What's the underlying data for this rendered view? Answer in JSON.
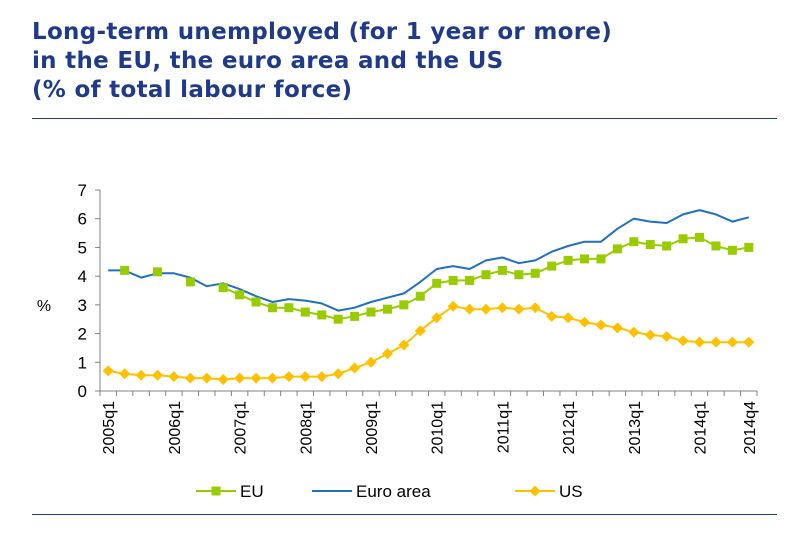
{
  "title_lines": [
    "Long-term unemployed (for 1 year or more)",
    "in the EU, the euro area and the US",
    "(% of total labour force)"
  ],
  "chart_data": {
    "type": "line",
    "ylabel": "%",
    "ylim": [
      0,
      7
    ],
    "yticks": [
      0,
      1,
      2,
      3,
      4,
      5,
      6,
      7
    ],
    "grid": false,
    "legend_position": "bottom",
    "x": [
      "2005q1",
      "2005q2",
      "2005q3",
      "2005q4",
      "2006q1",
      "2006q2",
      "2006q3",
      "2006q4",
      "2007q1",
      "2007q2",
      "2007q3",
      "2007q4",
      "2008q1",
      "2008q2",
      "2008q3",
      "2008q4",
      "2009q1",
      "2009q2",
      "2009q3",
      "2009q4",
      "2010q1",
      "2010q2",
      "2010q3",
      "2010q4",
      "2011q1",
      "2011q2",
      "2011q3",
      "2011q4",
      "2012q1",
      "2012q2",
      "2012q3",
      "2012q4",
      "2013q1",
      "2013q2",
      "2013q3",
      "2013q4",
      "2014q1",
      "2014q2",
      "2014q3",
      "2014q4"
    ],
    "x_tick_labels": [
      "2005q1",
      "2006q1",
      "2007q1",
      "2008q1",
      "2009q1",
      "2010q1",
      "2011q1",
      "2012q1",
      "2013q1",
      "2014q1",
      "2014q4"
    ],
    "series": [
      {
        "name": "EU",
        "color": "#99cc00",
        "marker": "square",
        "values": [
          null,
          4.2,
          null,
          4.15,
          null,
          3.8,
          null,
          3.6,
          3.35,
          3.1,
          2.9,
          2.9,
          2.75,
          2.65,
          2.5,
          2.6,
          2.75,
          2.85,
          3.0,
          3.3,
          3.75,
          3.85,
          3.85,
          4.05,
          4.2,
          4.05,
          4.1,
          4.35,
          4.55,
          4.6,
          4.6,
          4.95,
          5.2,
          5.1,
          5.05,
          5.3,
          5.35,
          5.05,
          4.9,
          5.0
        ]
      },
      {
        "name": "Euro area",
        "color": "#1f6fc5",
        "marker": "none",
        "values": [
          4.2,
          4.2,
          3.95,
          4.1,
          4.1,
          3.95,
          3.65,
          3.75,
          3.55,
          3.3,
          3.1,
          3.2,
          3.15,
          3.05,
          2.8,
          2.9,
          3.1,
          3.25,
          3.4,
          3.8,
          4.25,
          4.35,
          4.25,
          4.55,
          4.65,
          4.45,
          4.55,
          4.85,
          5.05,
          5.2,
          5.2,
          5.65,
          6.0,
          5.9,
          5.85,
          6.15,
          6.3,
          6.15,
          5.9,
          6.05
        ]
      },
      {
        "name": "US",
        "color": "#ffc000",
        "marker": "diamond",
        "values": [
          0.7,
          0.6,
          0.55,
          0.55,
          0.5,
          0.45,
          0.45,
          0.4,
          0.45,
          0.45,
          0.45,
          0.5,
          0.5,
          0.5,
          0.6,
          0.8,
          1.0,
          1.3,
          1.6,
          2.1,
          2.55,
          2.95,
          2.85,
          2.85,
          2.9,
          2.85,
          2.9,
          2.6,
          2.55,
          2.4,
          2.3,
          2.2,
          2.05,
          1.95,
          1.9,
          1.75,
          1.7,
          1.7,
          1.7,
          1.7
        ]
      }
    ]
  }
}
